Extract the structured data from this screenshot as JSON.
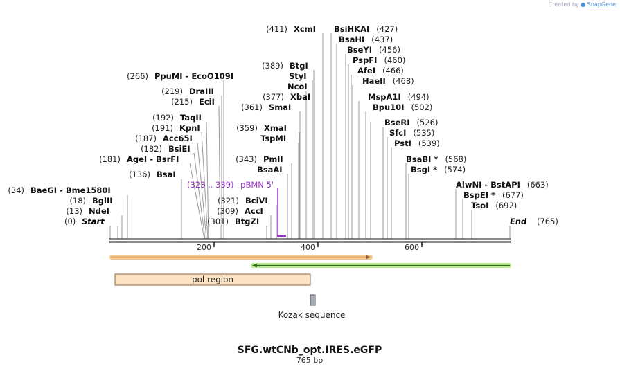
{
  "credit": {
    "prefix": "Created by",
    "brand": "SnapGene"
  },
  "title": "SFG.wtCNb_opt.IRES.eGFP",
  "length_label": "765 bp",
  "start_label": "Start",
  "start_pos": "(0)",
  "end_label": "End",
  "end_pos": "(765)",
  "ticks": [
    "200",
    "400",
    "600"
  ],
  "primer": {
    "name": "pBMN 5'",
    "range": "(323 .. 339)",
    "color": "#9b30d0"
  },
  "features": {
    "pol": "pol region",
    "kozak": "Kozak sequence"
  },
  "enzymes": [
    {
      "id": "baegi",
      "label": "BaeGI  -  Bme1580I",
      "pos": "(34)"
    },
    {
      "id": "bglii",
      "label": "BglII",
      "pos": "(18)"
    },
    {
      "id": "ndei",
      "label": "NdeI",
      "pos": "(13)"
    },
    {
      "id": "agei",
      "label": "AgeI  -  BsrFI",
      "pos": "(181)"
    },
    {
      "id": "bsai",
      "label": "BsaI",
      "pos": "(136)"
    },
    {
      "id": "bsiei",
      "label": "BsiEI",
      "pos": "(182)"
    },
    {
      "id": "acc65i",
      "label": "Acc65I",
      "pos": "(187)"
    },
    {
      "id": "kpni",
      "label": "KpnI",
      "pos": "(191)"
    },
    {
      "id": "taqii",
      "label": "TaqII",
      "pos": "(192)"
    },
    {
      "id": "ecii",
      "label": "EciI",
      "pos": "(215)"
    },
    {
      "id": "draiii",
      "label": "DraIII",
      "pos": "(219)"
    },
    {
      "id": "ppumi",
      "label": "PpuMI  -  EcoO109I",
      "pos": "(266)"
    },
    {
      "id": "btgzi",
      "label": "BtgZI",
      "pos": "(301)"
    },
    {
      "id": "acci",
      "label": "AccI",
      "pos": "(309)"
    },
    {
      "id": "bcivi",
      "label": "BciVI",
      "pos": "(321)"
    },
    {
      "id": "bsaai",
      "label": "BsaAI",
      "pos": ""
    },
    {
      "id": "pmli",
      "label": "PmlI",
      "pos": "(343)"
    },
    {
      "id": "tspmi",
      "label": "TspMI",
      "pos": ""
    },
    {
      "id": "xmai",
      "label": "XmaI",
      "pos": "(359)"
    },
    {
      "id": "smai",
      "label": "SmaI",
      "pos": "(361)"
    },
    {
      "id": "xbai",
      "label": "XbaI",
      "pos": "(377)"
    },
    {
      "id": "ncoi",
      "label": "NcoI",
      "pos": ""
    },
    {
      "id": "styi",
      "label": "StyI",
      "pos": ""
    },
    {
      "id": "btgi",
      "label": "BtgI",
      "pos": "(389)"
    },
    {
      "id": "xcmi",
      "label": "XcmI",
      "pos": "(411)"
    },
    {
      "id": "bsihkai",
      "label": "BsiHKAI",
      "pos": "(427)"
    },
    {
      "id": "bsahi",
      "label": "BsaHI",
      "pos": "(437)"
    },
    {
      "id": "bseyi",
      "label": "BseYI",
      "pos": "(456)"
    },
    {
      "id": "pspfi",
      "label": "PspFI",
      "pos": "(460)"
    },
    {
      "id": "afei",
      "label": "AfeI",
      "pos": "(466)"
    },
    {
      "id": "haeii",
      "label": "HaeII",
      "pos": "(468)"
    },
    {
      "id": "mspa1i",
      "label": "MspA1I",
      "pos": "(494)"
    },
    {
      "id": "bpu10i",
      "label": "Bpu10I",
      "pos": "(502)"
    },
    {
      "id": "bseri",
      "label": "BseRI",
      "pos": "(526)"
    },
    {
      "id": "sfci",
      "label": "SfcI",
      "pos": "(535)"
    },
    {
      "id": "psti",
      "label": "PstI",
      "pos": "(539)"
    },
    {
      "id": "bsabi",
      "label": "BsaBI *",
      "pos": "(568)"
    },
    {
      "id": "bsgi",
      "label": "BsgI *",
      "pos": "(574)"
    },
    {
      "id": "alwni",
      "label": "AlwNI  -  BstAPI",
      "pos": "(663)"
    },
    {
      "id": "bspei",
      "label": "BspEI *",
      "pos": "(677)"
    },
    {
      "id": "tsoi",
      "label": "TsoI",
      "pos": "(692)"
    }
  ]
}
